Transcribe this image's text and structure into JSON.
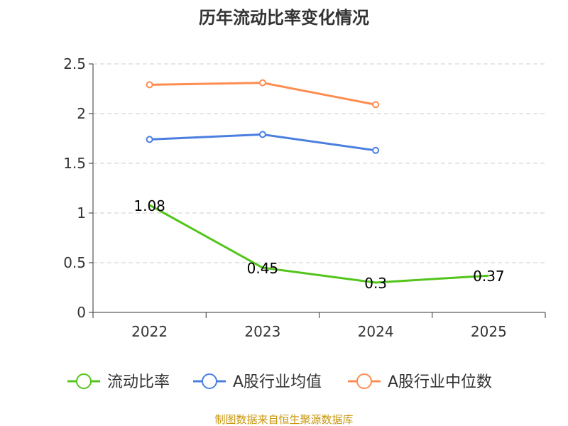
{
  "chart_data": {
    "type": "line",
    "title": "历年流动比率变化情况",
    "categories": [
      "2022",
      "2023",
      "2024",
      "2025"
    ],
    "ylim": [
      0,
      2.5
    ],
    "yticks": [
      "0",
      "0.5",
      "1",
      "1.5",
      "2",
      "2.5"
    ],
    "grid": true,
    "legend_position": "bottom",
    "series": [
      {
        "name": "流动比率",
        "color": "#52c41a",
        "values": [
          1.08,
          0.45,
          0.3,
          0.37
        ],
        "labels": [
          "1.08",
          "0.45",
          "0.3",
          "0.37"
        ]
      },
      {
        "name": "A股行业均值",
        "color": "#4a7fe0",
        "values": [
          1.74,
          1.79,
          1.63,
          null
        ]
      },
      {
        "name": "A股行业中位数",
        "color": "#ff8c50",
        "values": [
          2.29,
          2.31,
          2.09,
          null
        ]
      }
    ],
    "source": "制图数据来自恒生聚源数据库"
  }
}
